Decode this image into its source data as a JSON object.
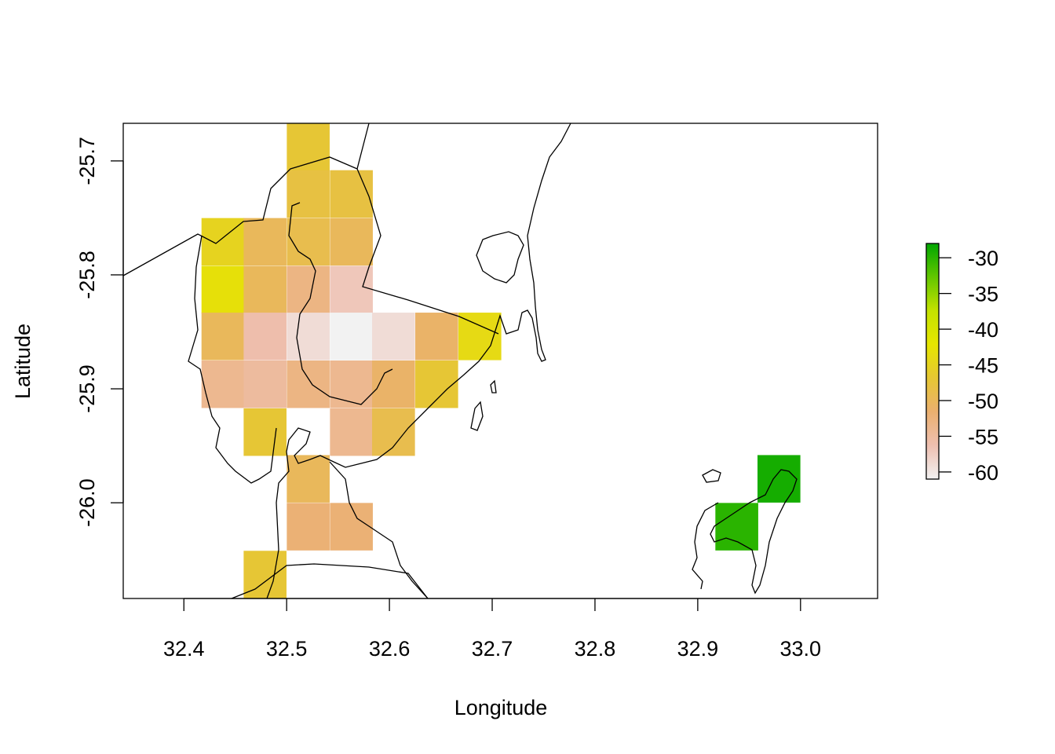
{
  "chart_data": {
    "type": "heatmap",
    "title": "",
    "xlabel": "Longitude",
    "ylabel": "Latitude",
    "xlim": [
      32.341,
      33.075
    ],
    "ylim": [
      -26.084,
      -25.667
    ],
    "x_ticks": [
      "32.4",
      "32.5",
      "32.6",
      "32.7",
      "32.8",
      "32.9",
      "33.0"
    ],
    "x_tick_values": [
      32.4,
      32.5,
      32.6,
      32.7,
      32.8,
      32.9,
      33.0
    ],
    "y_ticks": [
      "-25.7",
      "-25.8",
      "-25.9",
      "-26.0"
    ],
    "y_tick_values": [
      -25.7,
      -25.8,
      -25.9,
      -26.0
    ],
    "cell_size_deg": [
      0.0417,
      0.0417
    ],
    "color_scale": {
      "min": -61,
      "max": -28,
      "stops": [
        "#f2f2f2",
        "#eebfb0",
        "#ebb06f",
        "#e6c733",
        "#e6e600",
        "#c4e200",
        "#63c600",
        "#00a600"
      ],
      "ticks": [
        "-30",
        "-35",
        "-40",
        "-45",
        "-50",
        "-55",
        "-60"
      ],
      "tick_values": [
        -30,
        -35,
        -40,
        -45,
        -50,
        -55,
        -60
      ]
    },
    "cells": [
      {
        "lon": 32.521,
        "lat": -25.688,
        "value": -47
      },
      {
        "lon": 32.521,
        "lat": -25.729,
        "value": -48
      },
      {
        "lon": 32.563,
        "lat": -25.729,
        "value": -48
      },
      {
        "lon": 32.438,
        "lat": -25.771,
        "value": -45
      },
      {
        "lon": 32.479,
        "lat": -25.771,
        "value": -50
      },
      {
        "lon": 32.521,
        "lat": -25.771,
        "value": -49
      },
      {
        "lon": 32.563,
        "lat": -25.771,
        "value": -50
      },
      {
        "lon": 32.438,
        "lat": -25.813,
        "value": -43
      },
      {
        "lon": 32.479,
        "lat": -25.813,
        "value": -50
      },
      {
        "lon": 32.521,
        "lat": -25.813,
        "value": -53
      },
      {
        "lon": 32.563,
        "lat": -25.813,
        "value": -57
      },
      {
        "lon": 32.438,
        "lat": -25.854,
        "value": -50
      },
      {
        "lon": 32.479,
        "lat": -25.854,
        "value": -56
      },
      {
        "lon": 32.521,
        "lat": -25.854,
        "value": -59
      },
      {
        "lon": 32.563,
        "lat": -25.854,
        "value": -61
      },
      {
        "lon": 32.604,
        "lat": -25.854,
        "value": -59
      },
      {
        "lon": 32.646,
        "lat": -25.854,
        "value": -51
      },
      {
        "lon": 32.688,
        "lat": -25.854,
        "value": -44
      },
      {
        "lon": 32.438,
        "lat": -25.896,
        "value": -54
      },
      {
        "lon": 32.479,
        "lat": -25.896,
        "value": -55
      },
      {
        "lon": 32.521,
        "lat": -25.896,
        "value": -53
      },
      {
        "lon": 32.563,
        "lat": -25.896,
        "value": -54
      },
      {
        "lon": 32.604,
        "lat": -25.896,
        "value": -51
      },
      {
        "lon": 32.646,
        "lat": -25.896,
        "value": -47
      },
      {
        "lon": 32.479,
        "lat": -25.938,
        "value": -47
      },
      {
        "lon": 32.563,
        "lat": -25.938,
        "value": -54
      },
      {
        "lon": 32.604,
        "lat": -25.938,
        "value": -49
      },
      {
        "lon": 32.521,
        "lat": -25.979,
        "value": -50
      },
      {
        "lon": 32.521,
        "lat": -26.021,
        "value": -52
      },
      {
        "lon": 32.563,
        "lat": -26.021,
        "value": -52
      },
      {
        "lon": 32.479,
        "lat": -26.063,
        "value": -47
      },
      {
        "lon": 32.979,
        "lat": -25.979,
        "value": -29
      },
      {
        "lon": 32.938,
        "lat": -26.021,
        "value": -30
      }
    ]
  }
}
